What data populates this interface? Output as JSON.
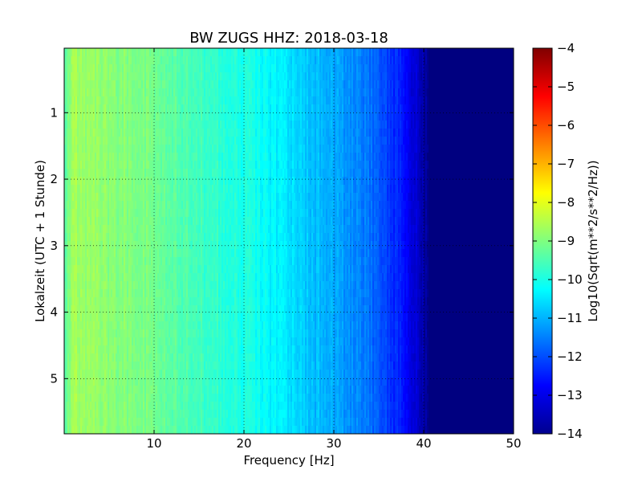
{
  "chart_data": {
    "type": "heatmap",
    "title": "BW ZUGS HHZ: 2018-03-18",
    "xlabel": "Frequency [Hz]",
    "ylabel": "Lokalzeit (UTC + 1 Stunde)",
    "xlim": [
      0,
      50
    ],
    "ylim": [
      5.83,
      0.03
    ],
    "y_inverted": true,
    "xticks": [
      10,
      20,
      30,
      40,
      50
    ],
    "yticks": [
      1,
      2,
      3,
      4,
      5
    ],
    "grid": true,
    "colormap": "jet",
    "colorbar": {
      "label": "Log10(Sqrt(m**2/s**2/Hz))",
      "range": [
        -14,
        -4
      ],
      "ticks": [
        -4,
        -5,
        -6,
        -7,
        -8,
        -9,
        -10,
        -11,
        -12,
        -13,
        -14
      ]
    },
    "spectrum_profile": {
      "frequency_hz": [
        0,
        1,
        3,
        5,
        8,
        10,
        13,
        16,
        20,
        24,
        27,
        30,
        33,
        35,
        37,
        38.5,
        39.5,
        40.5,
        42,
        50
      ],
      "log10_amplitude": [
        -9.5,
        -8.6,
        -8.8,
        -8.9,
        -9.0,
        -9.1,
        -9.4,
        -9.7,
        -10.0,
        -10.4,
        -10.8,
        -11.1,
        -11.5,
        -11.9,
        -12.4,
        -12.9,
        -13.4,
        -13.9,
        -14.0,
        -14.0
      ]
    }
  }
}
